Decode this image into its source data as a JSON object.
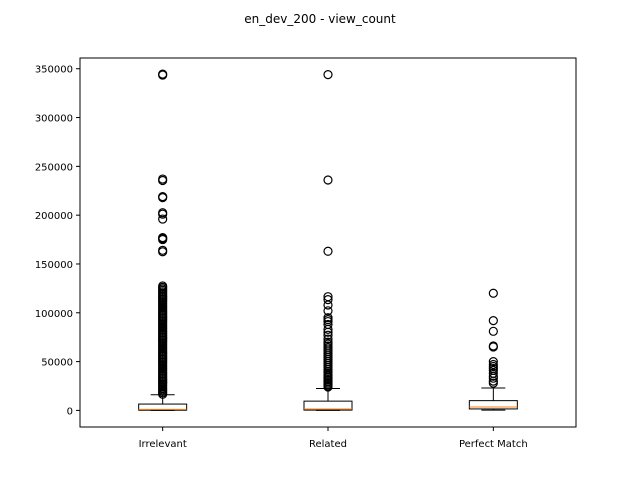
{
  "chart_data": {
    "type": "box",
    "title": "en_dev_200 - view_count",
    "xlabel": "",
    "ylabel": "",
    "categories": [
      "Irrelevant",
      "Related",
      "Perfect Match"
    ],
    "ylim": [
      -17000,
      361000
    ],
    "yticks": [
      0,
      50000,
      100000,
      150000,
      200000,
      250000,
      300000,
      350000
    ],
    "ytick_labels": [
      "0",
      "50000",
      "100000",
      "150000",
      "200000",
      "250000",
      "300000",
      "350000"
    ],
    "grid": false,
    "colors": {
      "box": "#000000",
      "median": "#ff7f0e",
      "flier": "#000000",
      "background": "#ffffff"
    },
    "boxes": [
      {
        "category": "Irrelevant",
        "whisker_low": 0,
        "q1": 200,
        "median": 1000,
        "q3": 6500,
        "whisker_high": 16000,
        "fliers": [
          343500,
          344500,
          237000,
          235500,
          219000,
          218000,
          202500,
          201000,
          196000,
          177000,
          176000,
          175000,
          164000,
          162500,
          127500,
          126000,
          124500,
          123000,
          121500,
          120000,
          118500,
          117000,
          115500,
          114000,
          112500,
          111000,
          109500,
          108000,
          106500,
          105000,
          103500,
          102000,
          100500,
          99000,
          97500,
          96000,
          94500,
          93000,
          91500,
          90000,
          88500,
          87000,
          85500,
          84000,
          82500,
          81000,
          79500,
          78000,
          76500,
          75000,
          73500,
          72000,
          70500,
          69000,
          67500,
          66000,
          64500,
          63000,
          61500,
          60000,
          58500,
          57000,
          55500,
          54000,
          52500,
          51000,
          49500,
          48000,
          46500,
          45000,
          43500,
          42000,
          40500,
          39000,
          37500,
          36000,
          34500,
          33000,
          31500,
          30000,
          28500,
          27000,
          25500,
          24000,
          22500,
          21000,
          19500,
          18000,
          16500
        ]
      },
      {
        "category": "Related",
        "whisker_low": 0,
        "q1": 300,
        "median": 1500,
        "q3": 9500,
        "whisker_high": 22500,
        "fliers": [
          344000,
          236000,
          163000,
          116500,
          113500,
          108000,
          102000,
          95000,
          93000,
          91000,
          88000,
          83000,
          80000,
          77000,
          73000,
          70000,
          68000,
          66000,
          64000,
          62000,
          60000,
          58000,
          56000,
          54000,
          52000,
          50000,
          48000,
          46000,
          44000,
          42000,
          40000,
          38500,
          37000,
          35500,
          34000,
          32500,
          31000,
          29500,
          28000,
          26500,
          25000,
          24000
        ]
      },
      {
        "category": "Perfect Match",
        "whisker_low": 300,
        "q1": 1500,
        "median": 3500,
        "q3": 10000,
        "whisker_high": 23000,
        "fliers": [
          120000,
          92000,
          81000,
          66000,
          65000,
          50000,
          47000,
          45000,
          43000,
          41000,
          38000,
          35000,
          33000,
          30000,
          28000
        ]
      }
    ]
  }
}
